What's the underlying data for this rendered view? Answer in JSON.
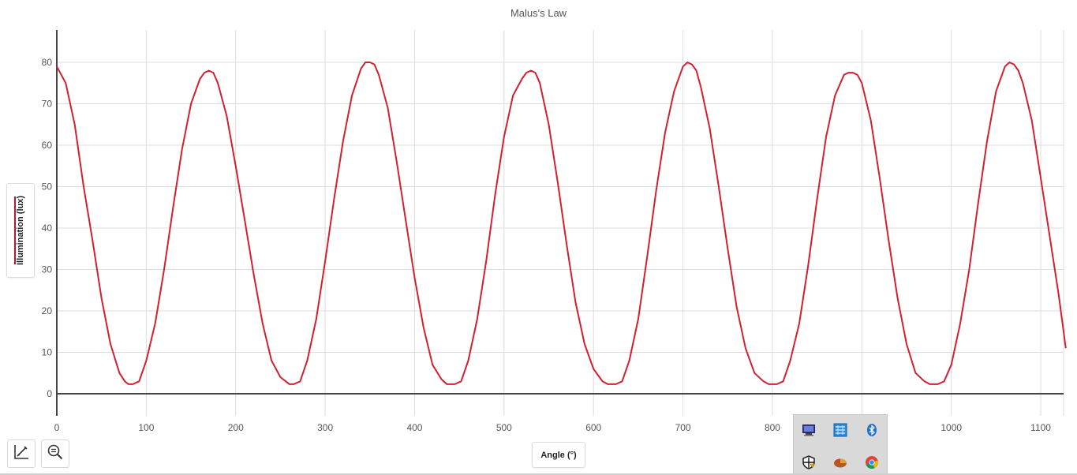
{
  "chart_data": {
    "type": "line",
    "title": "Malus's Law",
    "xlabel": "Angle (°)",
    "ylabel": "Illumination (lux)",
    "xlim": [
      0,
      1130
    ],
    "ylim": [
      -5,
      88
    ],
    "x_ticks": [
      0,
      100,
      200,
      300,
      400,
      500,
      600,
      700,
      800,
      900,
      1000,
      1100
    ],
    "y_ticks": [
      0,
      10,
      20,
      30,
      40,
      50,
      60,
      70,
      80
    ],
    "grid": true,
    "series": [
      {
        "color": "#d2202f",
        "x": [
          0,
          10,
          20,
          30,
          40,
          50,
          60,
          70,
          76,
          80,
          85,
          92,
          100,
          110,
          120,
          130,
          140,
          150,
          160,
          165,
          170,
          175,
          180,
          190,
          200,
          210,
          220,
          230,
          240,
          250,
          256,
          260,
          265,
          272,
          280,
          290,
          300,
          310,
          320,
          330,
          340,
          345,
          350,
          355,
          360,
          370,
          380,
          390,
          400,
          410,
          420,
          430,
          436,
          440,
          445,
          452,
          460,
          470,
          480,
          490,
          500,
          510,
          520,
          525,
          530,
          535,
          540,
          550,
          560,
          570,
          580,
          590,
          600,
          610,
          616,
          620,
          625,
          632,
          640,
          650,
          660,
          670,
          680,
          690,
          700,
          705,
          710,
          715,
          720,
          730,
          740,
          750,
          760,
          770,
          780,
          790,
          796,
          800,
          805,
          812,
          820,
          830,
          840,
          850,
          860,
          870,
          880,
          885,
          890,
          895,
          900,
          910,
          920,
          930,
          940,
          950,
          960,
          970,
          976,
          980,
          985,
          992,
          1000,
          1010,
          1020,
          1030,
          1040,
          1050,
          1060,
          1065,
          1070,
          1075,
          1080,
          1090,
          1100,
          1110,
          1120,
          1128
        ],
        "y": [
          79,
          75,
          65,
          50,
          37,
          23,
          12,
          5,
          3,
          2.3,
          2.3,
          3,
          8,
          17,
          30,
          45,
          59,
          70,
          76,
          77.5,
          78,
          77.5,
          75,
          67,
          55,
          42,
          29,
          17,
          8,
          4,
          3,
          2.3,
          2.3,
          3,
          8,
          18,
          32,
          47,
          61,
          72,
          78.5,
          80,
          80,
          79.5,
          77,
          69,
          56,
          42,
          28,
          16,
          7,
          3.5,
          2.3,
          2.3,
          2.3,
          3,
          8,
          18,
          32,
          48,
          62,
          72,
          76,
          77.5,
          78,
          77.5,
          75,
          65,
          51,
          36,
          22,
          12,
          6,
          3,
          2.3,
          2.3,
          2.3,
          3,
          8,
          18,
          33,
          49,
          63,
          73,
          79,
          80,
          79.5,
          78,
          74,
          64,
          50,
          35,
          21,
          11,
          5,
          3,
          2.3,
          2.3,
          2.3,
          3,
          8,
          17,
          31,
          47,
          62,
          72,
          77,
          77.5,
          77.5,
          77,
          75,
          66,
          52,
          37,
          23,
          12,
          5,
          3,
          2.3,
          2.3,
          2.3,
          3,
          7,
          17,
          30,
          46,
          61,
          73,
          79,
          80,
          79.5,
          78,
          75,
          66,
          52,
          38,
          24,
          11
        ]
      }
    ]
  },
  "toolbar": {
    "axis_button_icon": "axis-edit-icon",
    "zoom_button_icon": "zoom-out-icon"
  },
  "tray_icons": [
    "monitor-icon",
    "network-icon",
    "bluetooth-icon",
    "security-shield-icon",
    "pie-icon",
    "chrome-icon"
  ]
}
